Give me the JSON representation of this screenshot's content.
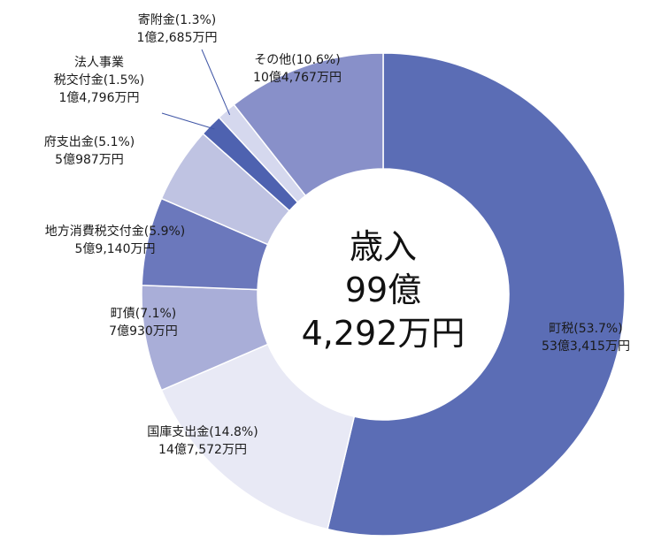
{
  "chart_data": {
    "type": "pie",
    "style": "donut",
    "center_text": [
      "歳入",
      "99億",
      "4,292万円"
    ],
    "slices": [
      {
        "label": "町税",
        "pct": "(53.7%)",
        "amount": "53億3,415万円",
        "value": 53.7,
        "color": "#5B6DB5"
      },
      {
        "label": "国庫支出金",
        "pct": "(14.8%)",
        "amount": "14億7,572万円",
        "value": 14.8,
        "color": "#E8E9F5"
      },
      {
        "label": "町債",
        "pct": "(7.1%)",
        "amount": "7億930万円",
        "value": 7.1,
        "color": "#A9AED8"
      },
      {
        "label": "地方消費税交付金",
        "pct": "(5.9%)",
        "amount": "5億9,140万円",
        "value": 5.9,
        "color": "#6B78BC"
      },
      {
        "label": "府支出金",
        "pct": "(5.1%)",
        "amount": "5億987万円",
        "value": 5.1,
        "color": "#BFC3E2"
      },
      {
        "label": "法人事業税交付金",
        "pct": "(1.5%)",
        "amount": "1億4,796万円",
        "value": 1.5,
        "color": "#4E62B0"
      },
      {
        "label": "寄附金",
        "pct": "(1.3%)",
        "amount": "1億2,685万円",
        "value": 1.3,
        "color": "#D5D8EE"
      },
      {
        "label": "その他",
        "pct": "(10.6%)",
        "amount": "10億4,767万円",
        "value": 10.6,
        "color": "#8890C9"
      }
    ]
  }
}
